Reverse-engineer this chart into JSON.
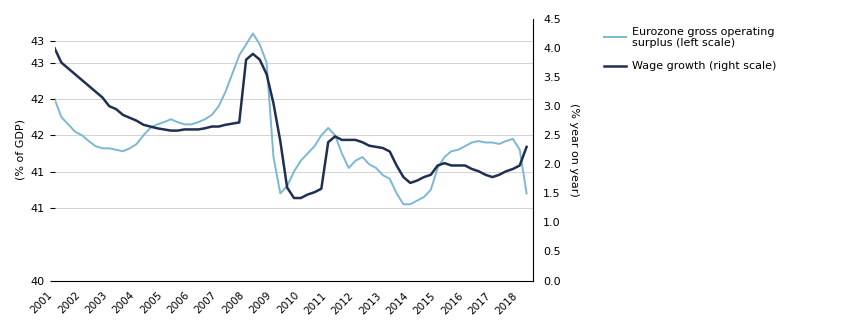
{
  "left_ylabel": "(% of GDP)",
  "right_ylabel": "(% year on year)",
  "left_ylim": [
    40.0,
    43.6
  ],
  "right_ylim": [
    0.0,
    4.5
  ],
  "right_yticks": [
    0.0,
    0.5,
    1.0,
    1.5,
    2.0,
    2.5,
    3.0,
    3.5,
    4.0,
    4.5
  ],
  "xtick_labels": [
    "2001",
    "2002",
    "2003",
    "2004",
    "2005",
    "2006",
    "2007",
    "2008",
    "2009",
    "2010",
    "2011",
    "2012",
    "2013",
    "2014",
    "2015",
    "2016",
    "2017",
    "2018"
  ],
  "legend_line1": "Eurozone gross operating\nsurplus (left scale)",
  "legend_line2": "Wage growth (right scale)",
  "light_blue_color": "#7ab8d4",
  "dark_blue_color": "#1f3050",
  "background_color": "#ffffff",
  "grid_color": "#cccccc",
  "eurozone_x": [
    2001.0,
    2001.25,
    2001.5,
    2001.75,
    2002.0,
    2002.25,
    2002.5,
    2002.75,
    2003.0,
    2003.25,
    2003.5,
    2003.75,
    2004.0,
    2004.25,
    2004.5,
    2004.75,
    2005.0,
    2005.25,
    2005.5,
    2005.75,
    2006.0,
    2006.25,
    2006.5,
    2006.75,
    2007.0,
    2007.25,
    2007.5,
    2007.75,
    2008.0,
    2008.25,
    2008.5,
    2008.75,
    2009.0,
    2009.25,
    2009.5,
    2009.75,
    2010.0,
    2010.25,
    2010.5,
    2010.75,
    2011.0,
    2011.25,
    2011.5,
    2011.75,
    2012.0,
    2012.25,
    2012.5,
    2012.75,
    2013.0,
    2013.25,
    2013.5,
    2013.75,
    2014.0,
    2014.25,
    2014.5,
    2014.75,
    2015.0,
    2015.25,
    2015.5,
    2015.75,
    2016.0,
    2016.25,
    2016.5,
    2016.75,
    2017.0,
    2017.25,
    2017.5,
    2017.75,
    2018.0,
    2018.25
  ],
  "eurozone_y": [
    42.5,
    42.25,
    42.15,
    42.05,
    42.0,
    41.92,
    41.85,
    41.82,
    41.82,
    41.8,
    41.78,
    41.82,
    41.88,
    42.0,
    42.1,
    42.15,
    42.18,
    42.22,
    42.18,
    42.15,
    42.15,
    42.18,
    42.22,
    42.28,
    42.4,
    42.6,
    42.85,
    43.1,
    43.25,
    43.4,
    43.25,
    43.0,
    41.7,
    41.2,
    41.3,
    41.5,
    41.65,
    41.75,
    41.85,
    42.0,
    42.1,
    42.0,
    41.75,
    41.55,
    41.65,
    41.7,
    41.6,
    41.55,
    41.45,
    41.4,
    41.2,
    41.05,
    41.05,
    41.1,
    41.15,
    41.25,
    41.55,
    41.7,
    41.78,
    41.8,
    41.85,
    41.9,
    41.92,
    41.9,
    41.9,
    41.88,
    41.92,
    41.95,
    41.8,
    41.2
  ],
  "wage_x": [
    2001.0,
    2001.25,
    2001.5,
    2001.75,
    2002.0,
    2002.25,
    2002.5,
    2002.75,
    2003.0,
    2003.25,
    2003.5,
    2003.75,
    2004.0,
    2004.25,
    2004.5,
    2004.75,
    2005.0,
    2005.25,
    2005.5,
    2005.75,
    2006.0,
    2006.25,
    2006.5,
    2006.75,
    2007.0,
    2007.25,
    2007.5,
    2007.75,
    2008.0,
    2008.25,
    2008.5,
    2008.75,
    2009.0,
    2009.25,
    2009.5,
    2009.75,
    2010.0,
    2010.25,
    2010.5,
    2010.75,
    2011.0,
    2011.25,
    2011.5,
    2011.75,
    2012.0,
    2012.25,
    2012.5,
    2012.75,
    2013.0,
    2013.25,
    2013.5,
    2013.75,
    2014.0,
    2014.25,
    2014.5,
    2014.75,
    2015.0,
    2015.25,
    2015.5,
    2015.75,
    2016.0,
    2016.25,
    2016.5,
    2016.75,
    2017.0,
    2017.25,
    2017.5,
    2017.75,
    2018.0,
    2018.25
  ],
  "wage_y": [
    4.0,
    3.75,
    3.65,
    3.55,
    3.45,
    3.35,
    3.25,
    3.15,
    3.0,
    2.95,
    2.85,
    2.8,
    2.75,
    2.68,
    2.65,
    2.62,
    2.6,
    2.58,
    2.58,
    2.6,
    2.6,
    2.6,
    2.62,
    2.65,
    2.65,
    2.68,
    2.7,
    2.72,
    3.8,
    3.9,
    3.8,
    3.55,
    3.05,
    2.4,
    1.6,
    1.42,
    1.42,
    1.48,
    1.52,
    1.58,
    2.38,
    2.48,
    2.42,
    2.42,
    2.42,
    2.38,
    2.32,
    2.3,
    2.28,
    2.22,
    1.98,
    1.78,
    1.68,
    1.72,
    1.78,
    1.82,
    1.98,
    2.02,
    1.98,
    1.98,
    1.98,
    1.92,
    1.88,
    1.82,
    1.78,
    1.82,
    1.88,
    1.92,
    1.98,
    2.3
  ]
}
